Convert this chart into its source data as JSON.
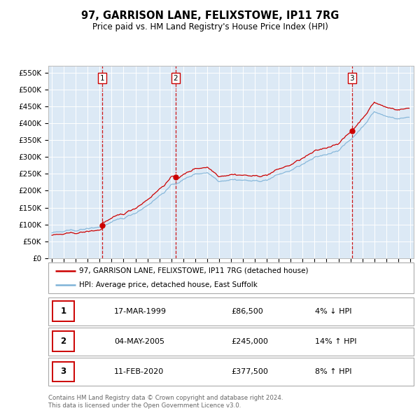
{
  "title": "97, GARRISON LANE, FELIXSTOWE, IP11 7RG",
  "subtitle": "Price paid vs. HM Land Registry's House Price Index (HPI)",
  "fig_width": 6.0,
  "fig_height": 5.9,
  "dpi": 100,
  "background_color": "#ffffff",
  "plot_bg_color": "#dce9f5",
  "grid_color": "#ffffff",
  "hpi_color": "#7fb3d8",
  "price_color": "#cc0000",
  "vline_color": "#cc0000",
  "dot_color": "#cc0000",
  "purchases": [
    {
      "index": 1,
      "date_label": "17-MAR-1999",
      "date_x": 1999.21,
      "price": 86500,
      "pct": "4%",
      "direction": "↓"
    },
    {
      "index": 2,
      "date_label": "04-MAY-2005",
      "date_x": 2005.37,
      "price": 245000,
      "pct": "14%",
      "direction": "↑"
    },
    {
      "index": 3,
      "date_label": "11-FEB-2020",
      "date_x": 2020.12,
      "price": 377500,
      "pct": "8%",
      "direction": "↑"
    }
  ],
  "legend_label_red": "97, GARRISON LANE, FELIXSTOWE, IP11 7RG (detached house)",
  "legend_label_blue": "HPI: Average price, detached house, East Suffolk",
  "footer_line1": "Contains HM Land Registry data © Crown copyright and database right 2024.",
  "footer_line2": "This data is licensed under the Open Government Licence v3.0.",
  "ylim_min": 0,
  "ylim_max": 570000,
  "xlim_min": 1994.7,
  "xlim_max": 2025.3,
  "yticks": [
    0,
    50000,
    100000,
    150000,
    200000,
    250000,
    300000,
    350000,
    400000,
    450000,
    500000,
    550000
  ],
  "xticks_start": 1995,
  "xticks_end": 2025
}
